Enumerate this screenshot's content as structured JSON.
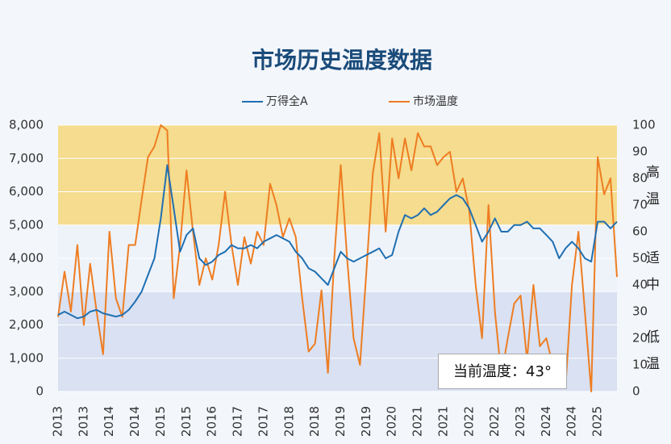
{
  "chart_data": {
    "type": "line",
    "title": "市场历史温度数据",
    "categories": [
      "2013",
      null,
      null,
      null,
      "2013",
      null,
      null,
      null,
      "2014",
      null,
      null,
      null,
      "2014",
      null,
      null,
      null,
      "2015",
      null,
      null,
      null,
      "2015",
      null,
      null,
      null,
      "2016",
      null,
      null,
      null,
      "2017",
      null,
      null,
      null,
      "2017",
      null,
      null,
      null,
      "2018",
      null,
      null,
      null,
      "2018",
      null,
      null,
      null,
      "2019",
      null,
      null,
      null,
      "2019",
      null,
      null,
      null,
      "2020",
      null,
      null,
      null,
      "2021",
      null,
      null,
      null,
      "2021",
      null,
      null,
      null,
      "2022",
      null,
      null,
      null,
      "2022",
      null,
      null,
      null,
      "2023",
      null,
      null,
      null,
      "2024",
      null,
      null,
      null,
      "2024",
      null,
      null,
      null,
      "2025",
      null,
      null,
      null
    ],
    "series": [
      {
        "name": "万得全A",
        "color": "#1f6fb2",
        "axis": "y",
        "values": [
          2300,
          2400,
          2300,
          2200,
          2250,
          2400,
          2450,
          2350,
          2300,
          2250,
          2300,
          2450,
          2700,
          3000,
          3500,
          4000,
          5200,
          6800,
          5500,
          4200,
          4700,
          4900,
          4000,
          3800,
          3900,
          4100,
          4200,
          4400,
          4300,
          4300,
          4400,
          4300,
          4500,
          4600,
          4700,
          4600,
          4500,
          4200,
          4000,
          3700,
          3600,
          3400,
          3200,
          3700,
          4200,
          4000,
          3900,
          4000,
          4100,
          4200,
          4300,
          4000,
          4100,
          4800,
          5300,
          5200,
          5300,
          5500,
          5300,
          5400,
          5600,
          5800,
          5900,
          5800,
          5500,
          5000,
          4500,
          4800,
          5200,
          4800,
          4800,
          5000,
          5000,
          5100,
          4900,
          4900,
          4700,
          4500,
          4000,
          4300,
          4500,
          4300,
          4000,
          3900,
          5100,
          5100,
          4900,
          5100
        ]
      },
      {
        "name": "市场温度",
        "color": "#ee7d22",
        "axis": "y2",
        "values": [
          28,
          45,
          30,
          55,
          25,
          48,
          30,
          14,
          60,
          35,
          28,
          55,
          55,
          72,
          88,
          92,
          100,
          98,
          35,
          55,
          83,
          60,
          40,
          50,
          42,
          55,
          75,
          55,
          40,
          58,
          48,
          60,
          55,
          78,
          70,
          58,
          65,
          58,
          35,
          15,
          18,
          38,
          7,
          50,
          85,
          50,
          20,
          10,
          45,
          82,
          97,
          60,
          95,
          80,
          95,
          83,
          97,
          92,
          92,
          85,
          88,
          90,
          75,
          80,
          68,
          40,
          20,
          70,
          30,
          6,
          20,
          33,
          36,
          12,
          40,
          17,
          20,
          10,
          5,
          2,
          40,
          60,
          30,
          0,
          88,
          74,
          80,
          43
        ]
      }
    ],
    "ylim": [
      0,
      8000
    ],
    "yticks": [
      {
        "value": 0,
        "label": "0"
      },
      {
        "value": 1000,
        "label": "1,000"
      },
      {
        "value": 2000,
        "label": "2,000"
      },
      {
        "value": 3000,
        "label": "3,000"
      },
      {
        "value": 4000,
        "label": "4,000"
      },
      {
        "value": 5000,
        "label": "5,000"
      },
      {
        "value": 6000,
        "label": "6,000"
      },
      {
        "value": 7000,
        "label": "7,000"
      },
      {
        "value": 8000,
        "label": "8,000"
      }
    ],
    "y2lim": [
      0,
      100
    ],
    "y2ticks": [
      0,
      10,
      20,
      30,
      40,
      50,
      60,
      70,
      80,
      90,
      100
    ],
    "bands": [
      {
        "from": 5000,
        "to": 8000,
        "color": "#f5dc8e"
      },
      {
        "from": 3000,
        "to": 5000,
        "color": "#eef3fa"
      },
      {
        "from": 0,
        "to": 3000,
        "color": "#d9e1f2"
      }
    ],
    "grid": true,
    "zone_labels": [
      "高温",
      "适中",
      "低温"
    ],
    "annotation": "当前温度：43°"
  }
}
